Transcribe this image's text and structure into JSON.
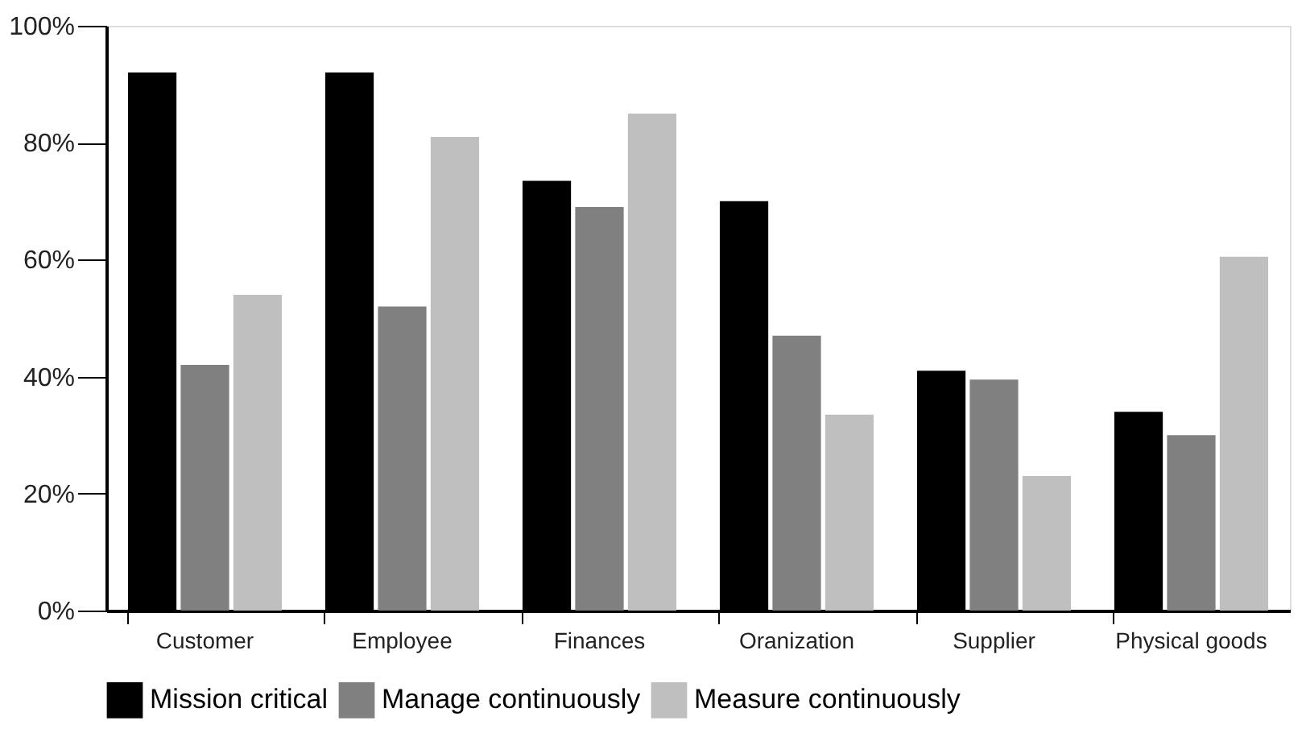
{
  "chart_data": {
    "type": "bar",
    "categories": [
      "Customer",
      "Employee",
      "Finances",
      "Oranization",
      "Supplier",
      "Physical goods"
    ],
    "series": [
      {
        "name": "Mission critical",
        "color": "#000000",
        "values": [
          92,
          92,
          73.5,
          70,
          41,
          34
        ]
      },
      {
        "name": "Manage continuously",
        "color": "#808080",
        "values": [
          42,
          52,
          69,
          47,
          39.5,
          30
        ]
      },
      {
        "name": "Measure continuously",
        "color": "#bfbfbf",
        "values": [
          54,
          81,
          85,
          33.5,
          23,
          60.5
        ]
      }
    ],
    "ylim": [
      0,
      100
    ],
    "yticks": [
      {
        "value": 0,
        "label": "0%"
      },
      {
        "value": 20,
        "label": "20%"
      },
      {
        "value": 40,
        "label": "40%"
      },
      {
        "value": 60,
        "label": "60%"
      },
      {
        "value": 80,
        "label": "80%"
      },
      {
        "value": 100,
        "label": "100%"
      }
    ],
    "grid": false,
    "legend": "bottom"
  }
}
